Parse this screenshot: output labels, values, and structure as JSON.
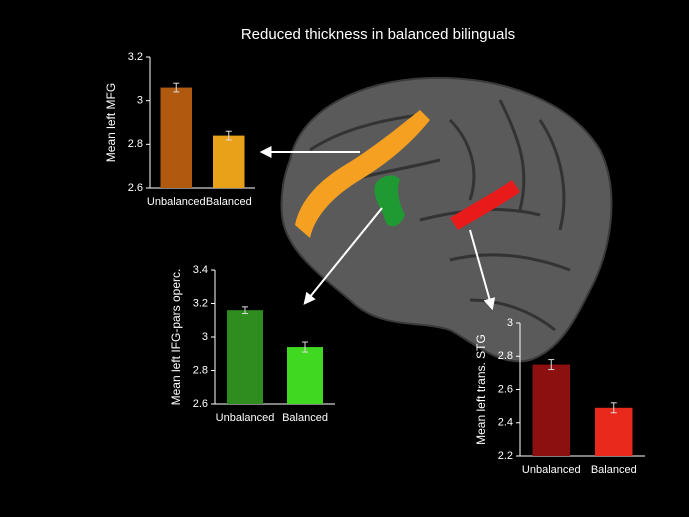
{
  "title": "Reduced thickness in balanced bilinguals",
  "chart_data": [
    {
      "type": "bar",
      "ylabel": "Mean left MFG",
      "categories": [
        "Unbalanced",
        "Balanced"
      ],
      "values": [
        3.06,
        2.84
      ],
      "errors": [
        0.02,
        0.02
      ],
      "colors": [
        "#b05a10",
        "#e9a11a"
      ],
      "ylim": [
        2.6,
        3.2
      ],
      "yticks": [
        2.6,
        2.8,
        3,
        3.2
      ]
    },
    {
      "type": "bar",
      "ylabel": "Mean left IFG-pars operc.",
      "categories": [
        "Unbalanced",
        "Balanced"
      ],
      "values": [
        3.16,
        2.94
      ],
      "errors": [
        0.02,
        0.03
      ],
      "colors": [
        "#2f8c1e",
        "#40d820"
      ],
      "ylim": [
        2.6,
        3.4
      ],
      "yticks": [
        2.6,
        2.8,
        3,
        3.2,
        3.4
      ]
    },
    {
      "type": "bar",
      "ylabel": "Mean left trans. STG",
      "categories": [
        "Unbalanced",
        "Balanced"
      ],
      "values": [
        2.75,
        2.49
      ],
      "errors": [
        0.03,
        0.03
      ],
      "colors": [
        "#8c1010",
        "#e8291c"
      ],
      "ylim": [
        2.2,
        3
      ],
      "yticks": [
        2.2,
        2.4,
        2.6,
        2.8,
        3
      ]
    }
  ]
}
